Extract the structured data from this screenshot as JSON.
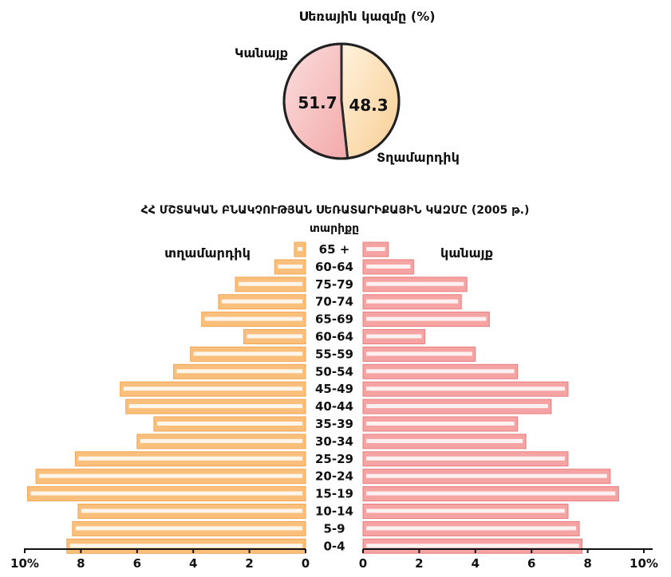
{
  "chart_data": [
    {
      "type": "pie",
      "title": "Սեռային կազմը (%)",
      "slices": [
        {
          "label": "Կանայք",
          "value": 51.7,
          "color": "#f8c8c8"
        },
        {
          "label": "Տղամարդիկ",
          "value": 48.3,
          "color": "#fde3bc"
        }
      ],
      "value_labels": [
        "51.7",
        "48.3"
      ]
    },
    {
      "type": "bar",
      "subtype": "population-pyramid",
      "title": "ՀՀ ՄՇՏԱԿԱՆ ԲՆԱԿՉՈՒԹՅԱՆ ՍԵՌԱՏԱՐԻՔԱՅԻՆ ԿԱԶՄԸ (2005 թ.)",
      "category_axis_title": "տարիքը",
      "categories": [
        "65 +",
        "60-64",
        "75-79",
        "70-74",
        "65-69",
        "60-64",
        "55-59",
        "50-54",
        "45-49",
        "40-44",
        "35-39",
        "30-34",
        "25-29",
        "20-24",
        "15-19",
        "10-14",
        "5-9",
        "0-4"
      ],
      "series": [
        {
          "name": "տղամարդիկ",
          "side": "left",
          "color": "#fbbf7c",
          "values": [
            0.4,
            1.1,
            2.5,
            3.1,
            3.7,
            2.2,
            4.1,
            4.7,
            6.6,
            6.4,
            5.4,
            6.0,
            8.2,
            9.6,
            9.9,
            8.1,
            8.3,
            8.5
          ]
        },
        {
          "name": "կանայք",
          "side": "right",
          "color": "#f6a3a3",
          "values": [
            0.9,
            1.8,
            3.7,
            3.5,
            4.5,
            2.2,
            4.0,
            5.5,
            7.3,
            6.7,
            5.5,
            5.8,
            7.3,
            8.8,
            9.1,
            7.3,
            7.7,
            7.8
          ]
        }
      ],
      "xlim": [
        0,
        10
      ],
      "x_ticks": [
        "10%",
        "8",
        "6",
        "4",
        "2",
        "0",
        "0",
        "2",
        "4",
        "6",
        "8",
        "10%"
      ]
    }
  ]
}
